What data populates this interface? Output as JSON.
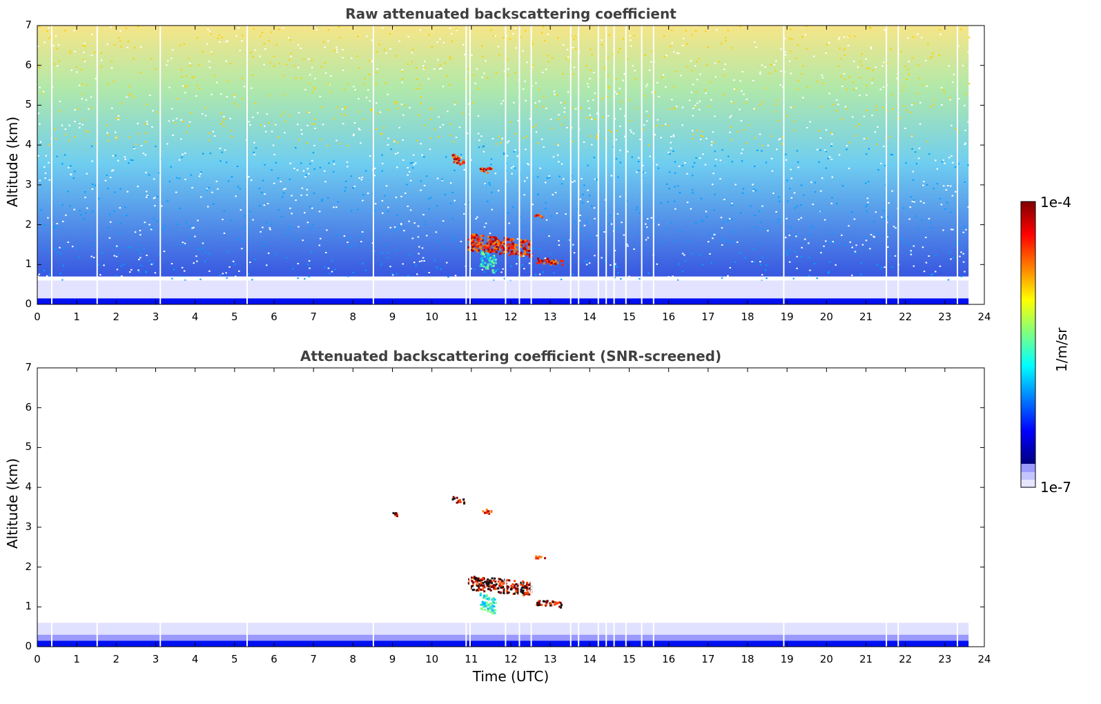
{
  "colors": {
    "jet": [
      "#00007f",
      "#0000ff",
      "#007fff",
      "#00ffff",
      "#7fff7f",
      "#ffff00",
      "#ff7f00",
      "#ff0000",
      "#7f0000"
    ],
    "light_blue": "#e0e0ff",
    "mid_blue": "#9999ff",
    "dark_blue": "#0000cc",
    "title_gray": "#404040"
  },
  "chart_data": [
    {
      "type": "heatmap",
      "title": "Raw attenuated backscattering coefficient",
      "xlabel": "",
      "ylabel": "Altitude (km)",
      "xlim": [
        0,
        24
      ],
      "ylim": [
        0,
        7
      ],
      "xticks": [
        "0",
        "1",
        "2",
        "3",
        "4",
        "5",
        "6",
        "7",
        "8",
        "9",
        "10",
        "11",
        "12",
        "13",
        "14",
        "15",
        "16",
        "17",
        "18",
        "19",
        "20",
        "21",
        "22",
        "23",
        "24"
      ],
      "yticks": [
        "0",
        "1",
        "2",
        "3",
        "4",
        "5",
        "6",
        "7"
      ],
      "features": [
        {
          "time": [
            10.5,
            10.8
          ],
          "altitude": [
            3.5,
            3.8
          ],
          "level": "high"
        },
        {
          "time": [
            11.2,
            11.5
          ],
          "altitude": [
            3.3,
            3.5
          ],
          "level": "high"
        },
        {
          "time": [
            10.9,
            12.5
          ],
          "altitude": [
            1.2,
            1.8
          ],
          "level": "high"
        },
        {
          "time": [
            12.6,
            13.3
          ],
          "altitude": [
            1.0,
            1.2
          ],
          "level": "high"
        },
        {
          "time": [
            11.2,
            11.6
          ],
          "altitude": [
            0.8,
            1.4
          ],
          "level": "medium"
        },
        {
          "time": [
            12.6,
            12.9
          ],
          "altitude": [
            2.2,
            2.3
          ],
          "level": "high"
        },
        {
          "time": [
            0,
            23.6
          ],
          "altitude": [
            0,
            0.6
          ],
          "level": "boundary layer"
        }
      ]
    },
    {
      "type": "heatmap",
      "title": "Attenuated backscattering coefficient (SNR-screened)",
      "xlabel": "Time (UTC)",
      "ylabel": "Altitude (km)",
      "xlim": [
        0,
        24
      ],
      "ylim": [
        0,
        7
      ],
      "xticks": [
        "0",
        "1",
        "2",
        "3",
        "4",
        "5",
        "6",
        "7",
        "8",
        "9",
        "10",
        "11",
        "12",
        "13",
        "14",
        "15",
        "16",
        "17",
        "18",
        "19",
        "20",
        "21",
        "22",
        "23",
        "24"
      ],
      "yticks": [
        "0",
        "1",
        "2",
        "3",
        "4",
        "5",
        "6",
        "7"
      ],
      "features": [
        {
          "time": [
            10.5,
            10.8
          ],
          "altitude": [
            3.6,
            3.8
          ],
          "level": "saturated"
        },
        {
          "time": [
            11.2,
            11.5
          ],
          "altitude": [
            3.35,
            3.5
          ],
          "level": "high"
        },
        {
          "time": [
            9.0,
            9.1
          ],
          "altitude": [
            3.3,
            3.4
          ],
          "level": "saturated"
        },
        {
          "time": [
            10.9,
            12.5
          ],
          "altitude": [
            1.3,
            1.8
          ],
          "level": "saturated"
        },
        {
          "time": [
            12.6,
            13.3
          ],
          "altitude": [
            1.0,
            1.2
          ],
          "level": "saturated"
        },
        {
          "time": [
            11.2,
            11.6
          ],
          "altitude": [
            0.8,
            1.4
          ],
          "level": "medium"
        },
        {
          "time": [
            12.6,
            12.9
          ],
          "altitude": [
            2.2,
            2.3
          ],
          "level": "high"
        },
        {
          "time": [
            0,
            23.6
          ],
          "altitude": [
            0,
            0.6
          ],
          "level": "boundary layer"
        }
      ]
    }
  ],
  "colorbar": {
    "max_label": "1e-4",
    "min_label": "1e-7",
    "unit_label": "1/m/sr"
  }
}
